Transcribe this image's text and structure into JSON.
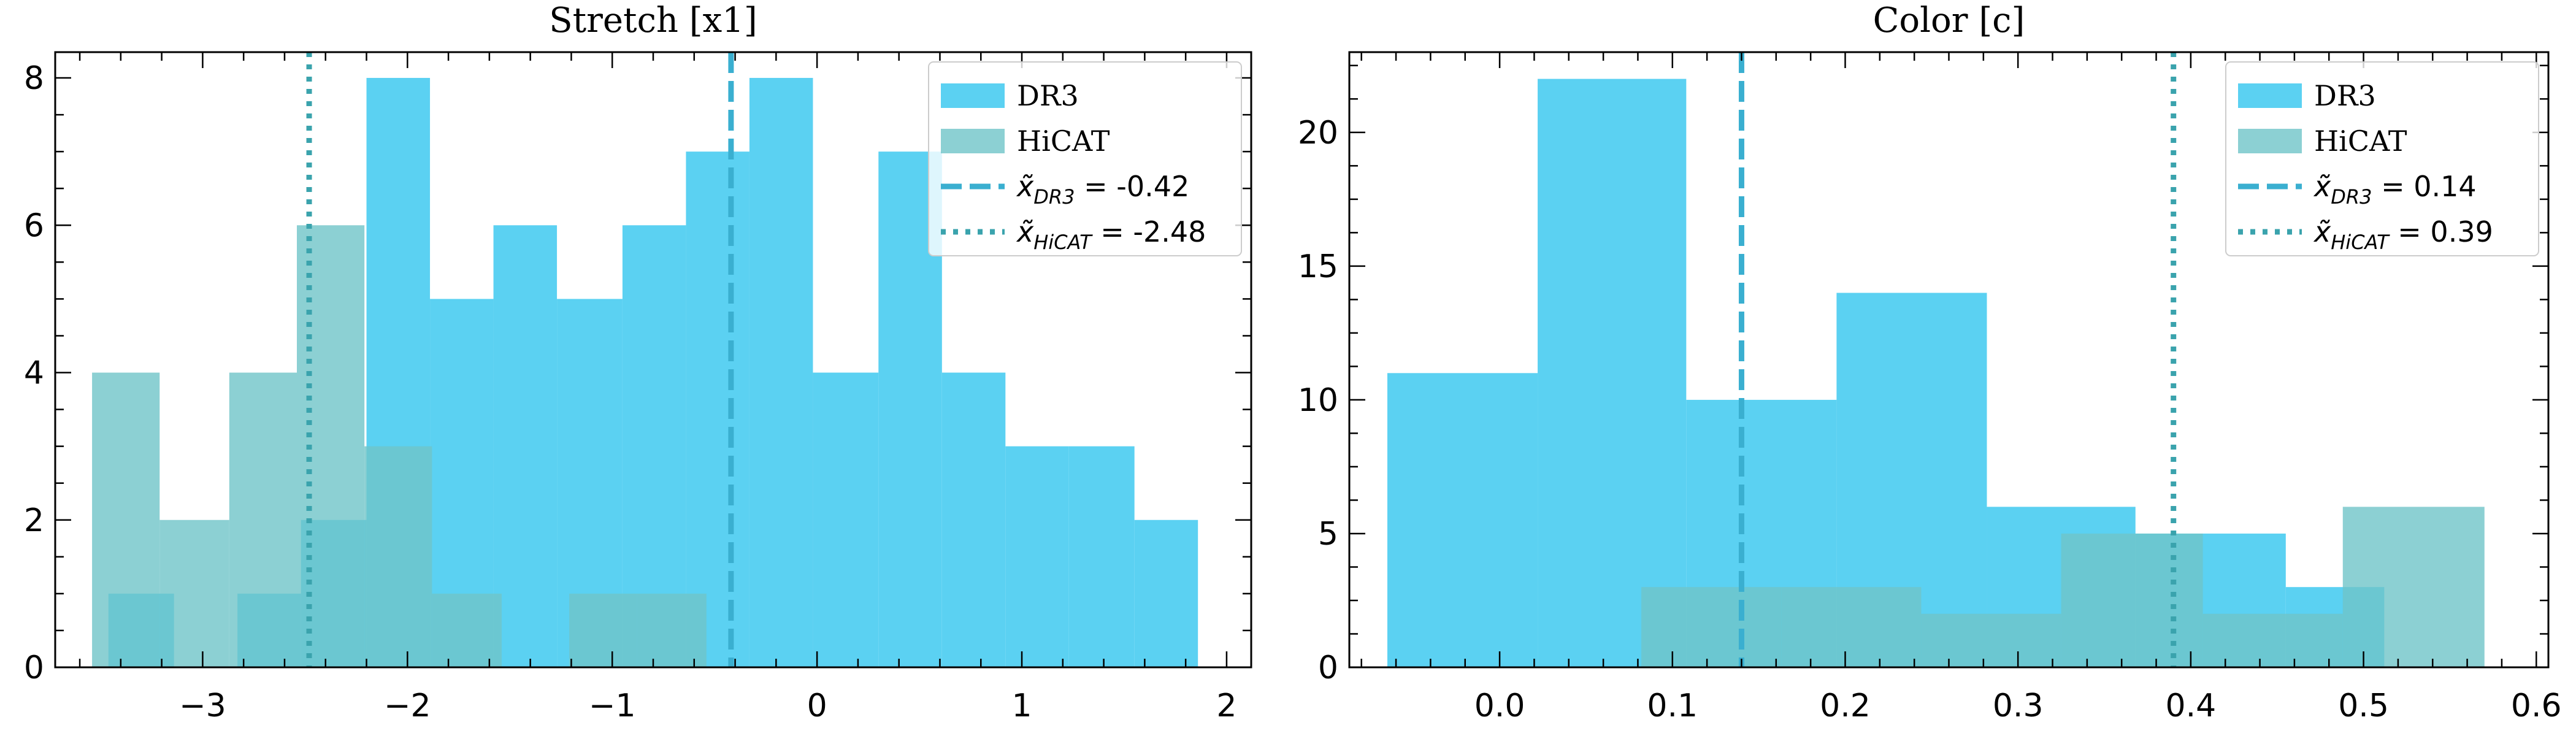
{
  "chart_data": [
    {
      "type": "bar",
      "title": "Stretch [x1]",
      "xlabel": "",
      "ylabel": "",
      "xlim": [
        -3.72,
        2.12
      ],
      "ylim": [
        0,
        8.35
      ],
      "xticks": [
        -3,
        -2,
        -1,
        0,
        1,
        2
      ],
      "xtick_labels": [
        "−3",
        "−2",
        "−1",
        "0",
        "1",
        "2"
      ],
      "yticks": [
        0,
        2,
        4,
        6,
        8
      ],
      "ytick_labels": [
        "0",
        "2",
        "4",
        "6",
        "8"
      ],
      "legend_position": "top-right",
      "series": [
        {
          "name": "DR3",
          "color": "#5bd1f2",
          "bin_edges": [
            -3.46,
            -3.14,
            -2.83,
            -2.52,
            -2.2,
            -1.89,
            -1.58,
            -1.27,
            -0.95,
            -0.64,
            -0.33,
            -0.02,
            0.3,
            0.61,
            0.92,
            1.23,
            1.55,
            1.86
          ],
          "counts": [
            1,
            0,
            1,
            2,
            8,
            5,
            6,
            5,
            6,
            7,
            8,
            4,
            7,
            4,
            3,
            3,
            2
          ]
        },
        {
          "name": "HiCAT",
          "color": "#6fc4c8",
          "bin_edges": [
            -3.54,
            -3.21,
            -2.87,
            -2.54,
            -2.21,
            -1.88,
            -1.54,
            -1.21,
            -0.88,
            -0.54
          ],
          "counts": [
            4,
            2,
            4,
            6,
            3,
            1,
            0,
            1,
            1
          ]
        }
      ],
      "medians": [
        {
          "name": "DR3",
          "label_symbol": "x̃",
          "label_sub": "DR3",
          "label_value": " = -0.42",
          "value": -0.42,
          "style": "dashed",
          "color": "#3aafd0"
        },
        {
          "name": "HiCAT",
          "label_symbol": "x̃",
          "label_sub": "HiCAT",
          "label_value": " = -2.48",
          "value": -2.48,
          "style": "dotted",
          "color": "#3aa3ad"
        }
      ]
    },
    {
      "type": "bar",
      "title": "Color [c]",
      "xlabel": "",
      "ylabel": "",
      "xlim": [
        -0.087,
        0.607
      ],
      "ylim": [
        0,
        23
      ],
      "xticks": [
        0.0,
        0.1,
        0.2,
        0.3,
        0.4,
        0.5,
        0.6
      ],
      "xtick_labels": [
        "0.0",
        "0.1",
        "0.2",
        "0.3",
        "0.4",
        "0.5",
        "0.6"
      ],
      "yticks": [
        0,
        5,
        10,
        15,
        20
      ],
      "ytick_labels": [
        "0",
        "5",
        "10",
        "15",
        "20"
      ],
      "legend_position": "top-right",
      "series": [
        {
          "name": "DR3",
          "color": "#5bd1f2",
          "bin_edges": [
            -0.065,
            0.022,
            0.108,
            0.195,
            0.282,
            0.368,
            0.455,
            0.512
          ],
          "counts": [
            11,
            22,
            10,
            14,
            6,
            5,
            3
          ]
        },
        {
          "name": "HiCAT",
          "color": "#6fc4c8",
          "bin_edges": [
            0.082,
            0.163,
            0.244,
            0.325,
            0.407,
            0.488,
            0.57
          ],
          "counts": [
            3,
            3,
            2,
            5,
            2,
            6
          ]
        }
      ],
      "medians": [
        {
          "name": "DR3",
          "label_symbol": "x̃",
          "label_sub": "DR3",
          "label_value": " = 0.14",
          "value": 0.14,
          "style": "dashed",
          "color": "#3aafd0"
        },
        {
          "name": "HiCAT",
          "label_symbol": "x̃",
          "label_sub": "HiCAT",
          "label_value": " = 0.39",
          "value": 0.39,
          "style": "dotted",
          "color": "#3aa3ad"
        }
      ]
    }
  ]
}
